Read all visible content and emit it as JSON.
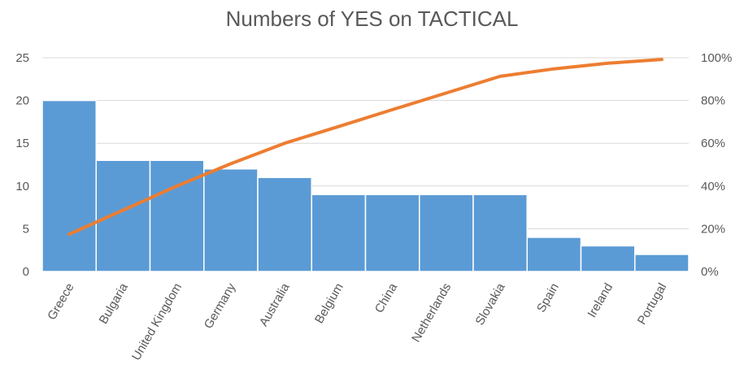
{
  "chart_data": {
    "type": "bar",
    "title": "Numbers of YES on TACTICAL",
    "categories": [
      "Greece",
      "Bulgaria",
      "United Kingdom",
      "Germany",
      "Australia",
      "Belgium",
      "China",
      "Netherlands",
      "Slovakia",
      "Spain",
      "Ireland",
      "Portugal"
    ],
    "series": [
      {
        "type": "bar",
        "axis": "left",
        "values": [
          20,
          13,
          13,
          12,
          11,
          9,
          9,
          9,
          9,
          4,
          3,
          2
        ]
      },
      {
        "type": "line",
        "axis": "right",
        "values": [
          17.4,
          28.7,
          40.0,
          50.4,
          60.0,
          67.8,
          75.7,
          83.5,
          91.3,
          94.8,
          97.4,
          99.2
        ]
      }
    ],
    "ylim": [
      0,
      25
    ],
    "yticks": [
      "0",
      "5",
      "10",
      "15",
      "20",
      "25"
    ],
    "y2lim": [
      0,
      100
    ],
    "y2ticks": [
      "0%",
      "20%",
      "40%",
      "60%",
      "80%",
      "100%"
    ],
    "grid": true,
    "legend": "none",
    "colors": {
      "bar": "#5B9BD5",
      "line": "#ED7D31",
      "grid": "#D9D9D9",
      "text": "#595959"
    }
  }
}
